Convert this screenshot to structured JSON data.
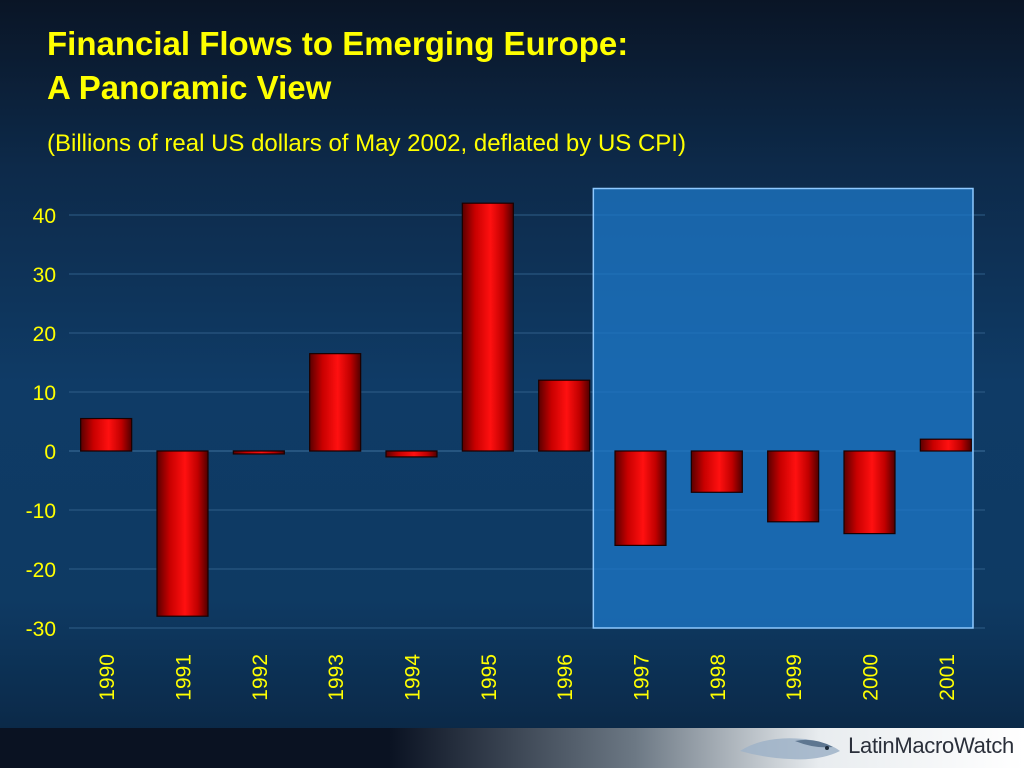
{
  "header": {
    "title_line1": "Financial Flows to Emerging Europe:",
    "title_line2": "A Panoramic View",
    "subtitle": "(Billions of real US dollars of May 2002, deflated by US CPI)"
  },
  "chart_data": {
    "type": "bar",
    "categories": [
      "1990",
      "1991",
      "1992",
      "1993",
      "1994",
      "1995",
      "1996",
      "1997",
      "1998",
      "1999",
      "2000",
      "2001"
    ],
    "values": [
      5.5,
      -28,
      -0.5,
      16.5,
      -1,
      42,
      12,
      -16,
      -7,
      -12,
      -14,
      2
    ],
    "ylim": [
      -30,
      45
    ],
    "yticks": [
      40,
      30,
      20,
      10,
      0,
      -10,
      -20,
      -30
    ],
    "ytick_labels": [
      "40",
      "30",
      "20",
      "10",
      "0",
      "-10",
      "-20",
      "-30"
    ],
    "grid": true,
    "highlight_range": [
      "1997",
      "2001"
    ],
    "colors": {
      "bar": "#e00000",
      "axis_text": "#ffff00",
      "highlight": "#1e78c8"
    }
  },
  "footer": {
    "brand": "LatinMacroWatch"
  }
}
